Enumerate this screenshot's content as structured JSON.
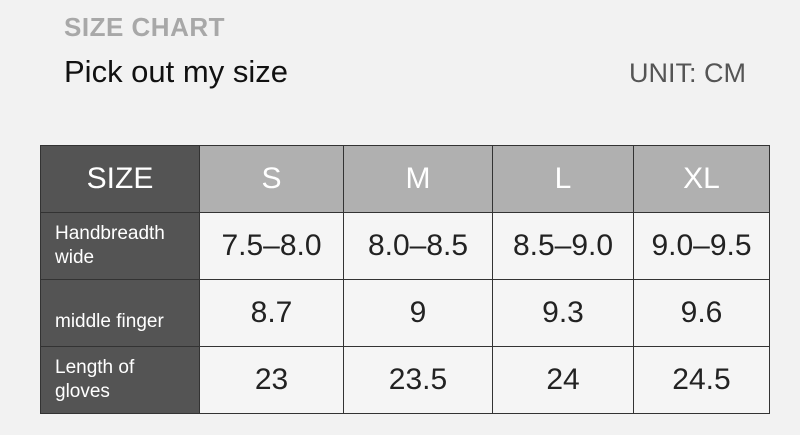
{
  "header": {
    "label": "SIZE CHART",
    "title": "Pick out my size",
    "unit": "UNIT: CM"
  },
  "table": {
    "corner": "SIZE",
    "sizes": [
      "S",
      "M",
      "L",
      "XL"
    ],
    "rows": [
      {
        "label": "Handbreadth wide",
        "values": [
          "7.5–8.0",
          "8.0–8.5",
          "8.5–9.0",
          "9.0–9.5"
        ]
      },
      {
        "label": "middle finger",
        "values": [
          "8.7",
          "9",
          "9.3",
          "9.6"
        ]
      },
      {
        "label": "Length of gloves",
        "values": [
          "23",
          "23.5",
          "24",
          "24.5"
        ]
      }
    ]
  },
  "colors": {
    "background": "#f2f2f2",
    "row_header": "#545454",
    "size_header": "#b0b0b0"
  }
}
